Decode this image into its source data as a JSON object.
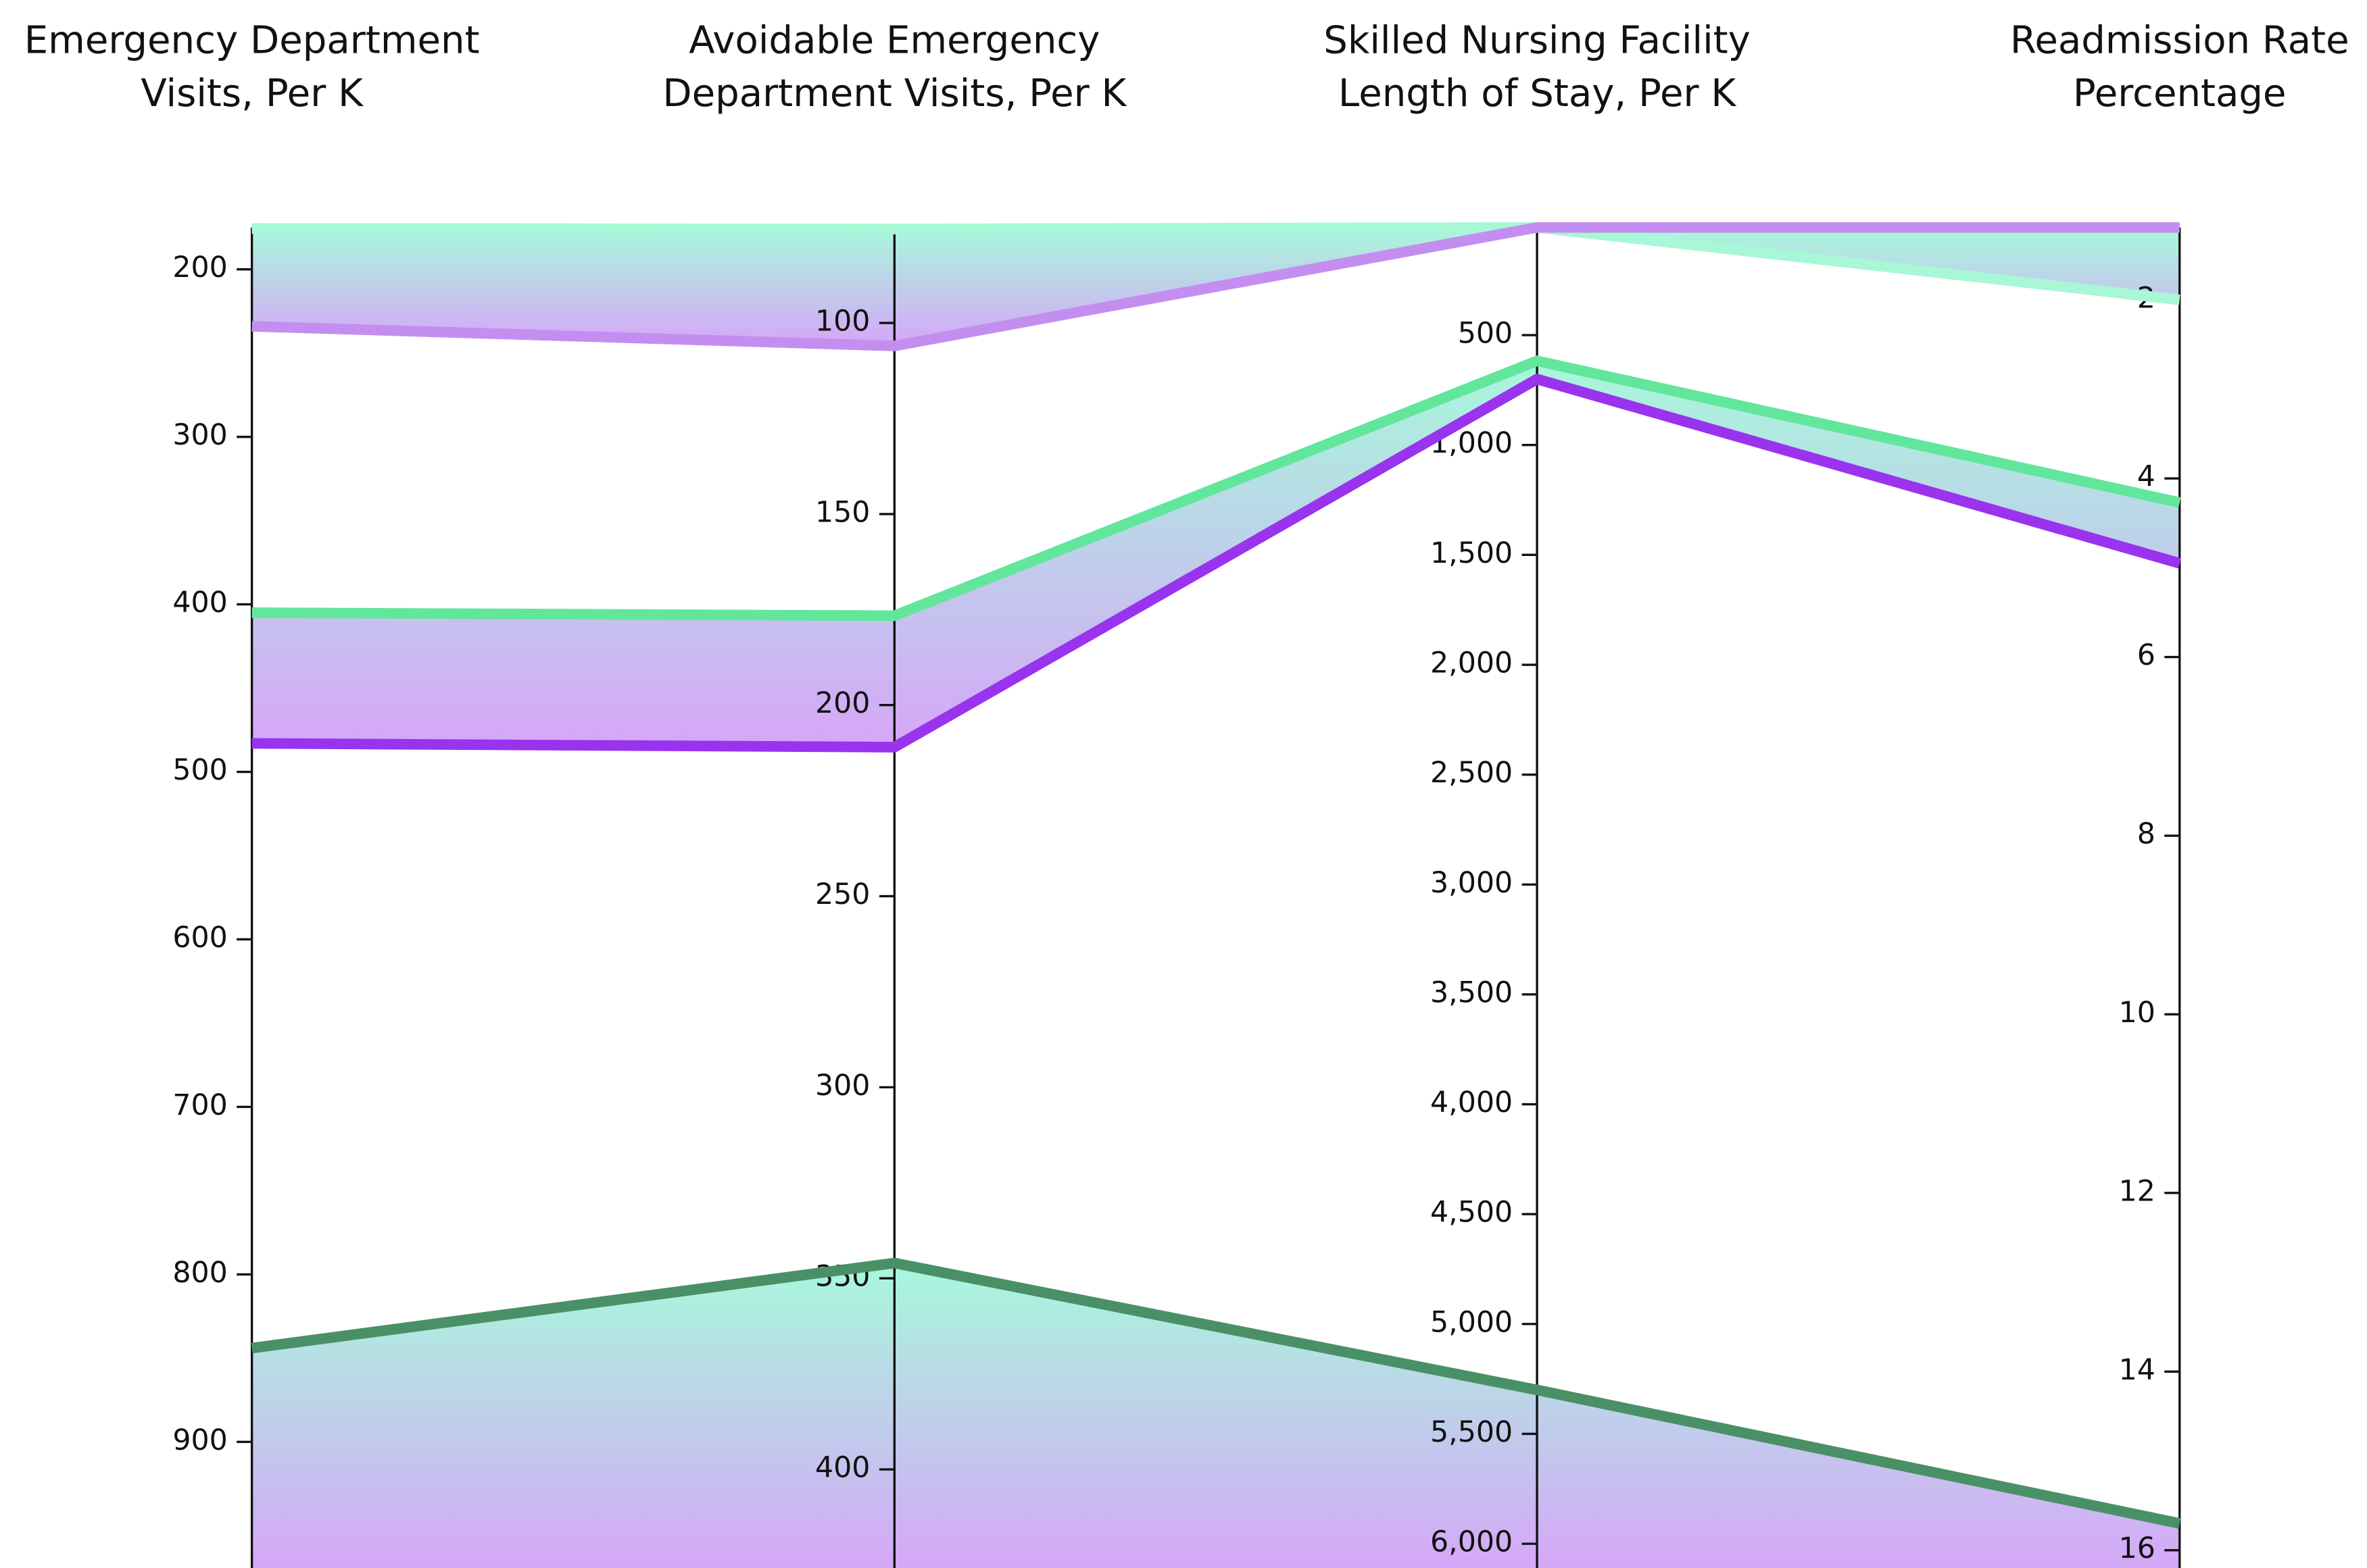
{
  "chart_data": {
    "type": "parallel",
    "axes": [
      {
        "label": [
          "Emergency Department",
          "Visits, Per K"
        ],
        "lim": [
          175,
          978
        ],
        "ticks": [
          200,
          300,
          400,
          500,
          600,
          700,
          800,
          900
        ]
      },
      {
        "label": [
          "Avoidable Emergency",
          "Department Visits, Per K"
        ],
        "lim": [
          75,
          427
        ],
        "ticks": [
          100,
          150,
          200,
          250,
          300,
          350,
          400
        ]
      },
      {
        "label": [
          "Skilled Nursing Facility",
          "Length of Stay, Per K"
        ],
        "lim": [
          10,
          6131
        ],
        "ticks": [
          500,
          {
            "value": 1000,
            "label": "1,000"
          },
          {
            "value": 1500,
            "label": "1,500"
          },
          {
            "value": 2000,
            "label": "2,000"
          },
          {
            "value": 2500,
            "label": "2,500"
          },
          {
            "value": 3000,
            "label": "3,000"
          },
          {
            "value": 3500,
            "label": "3,500"
          },
          {
            "value": 4000,
            "label": "4,000"
          },
          {
            "value": 4500,
            "label": "4,500"
          },
          {
            "value": 5000,
            "label": "5,000"
          },
          {
            "value": 5500,
            "label": "5,500"
          },
          {
            "value": 6000,
            "label": "6,000"
          }
        ]
      },
      {
        "label": [
          "Readmission Rate",
          "Percentage"
        ],
        "lim": [
          1.19,
          16.25
        ],
        "ticks": [
          2,
          4,
          6,
          8,
          10,
          12,
          14,
          16
        ]
      }
    ],
    "series": [
      {
        "color": "#a8f7d6",
        "values": [
          175.6,
          75.4,
          10,
          2.0
        ]
      },
      {
        "color": "#c48ef0",
        "values": [
          234,
          106,
          10,
          1.19
        ]
      },
      {
        "color": "#62e69c",
        "values": [
          405,
          176.6,
          617,
          4.27
        ]
      },
      {
        "color": "#9933ee",
        "values": [
          483,
          211,
          700,
          4.95
        ]
      },
      {
        "color": "#4a9066",
        "values": [
          844,
          346,
          5300,
          15.7
        ]
      }
    ],
    "inverted": true
  }
}
